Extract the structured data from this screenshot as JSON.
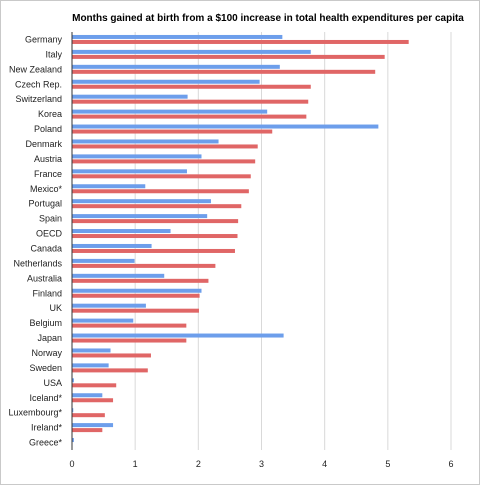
{
  "chart_data": {
    "type": "bar",
    "orientation": "horizontal",
    "title": "Months gained at birth from a $100 increase in total health expenditures per capita",
    "xlabel": "",
    "ylabel": "",
    "xlim": [
      0,
      6
    ],
    "xticks": [
      "0",
      "1",
      "2",
      "3",
      "4",
      "5",
      "6"
    ],
    "grid": true,
    "legend": "none",
    "colors": {
      "series_1": "#6d9eeb",
      "series_2": "#e06666"
    },
    "categories": [
      "Germany",
      "Italy",
      "New Zealand",
      "Czech Rep.",
      "Switzerland",
      "Korea",
      "Poland",
      "Denmark",
      "Austria",
      "France",
      "Mexico*",
      "Portugal",
      "Spain",
      "OECD",
      "Canada",
      "Netherlands",
      "Australia",
      "Finland",
      "UK",
      "Belgium",
      "Japan",
      "Norway",
      "Sweden",
      "USA",
      "Iceland*",
      "Luxembourg*",
      "Ireland*",
      "Greece*"
    ],
    "series": [
      {
        "values": [
          3.33,
          3.78,
          3.29,
          2.97,
          1.83,
          3.09,
          4.85,
          2.32,
          2.05,
          1.82,
          1.16,
          2.2,
          2.14,
          1.56,
          1.26,
          0.99,
          1.46,
          2.05,
          1.17,
          0.97,
          3.35,
          0.61,
          0.58,
          0.03,
          0.48,
          0.02,
          0.65,
          0.03
        ]
      },
      {
        "values": [
          5.33,
          4.95,
          4.8,
          3.78,
          3.74,
          3.71,
          3.17,
          2.94,
          2.9,
          2.83,
          2.8,
          2.68,
          2.63,
          2.62,
          2.58,
          2.27,
          2.16,
          2.02,
          2.01,
          1.81,
          1.81,
          1.25,
          1.2,
          0.7,
          0.65,
          0.52,
          0.48,
          0.0
        ]
      }
    ]
  }
}
